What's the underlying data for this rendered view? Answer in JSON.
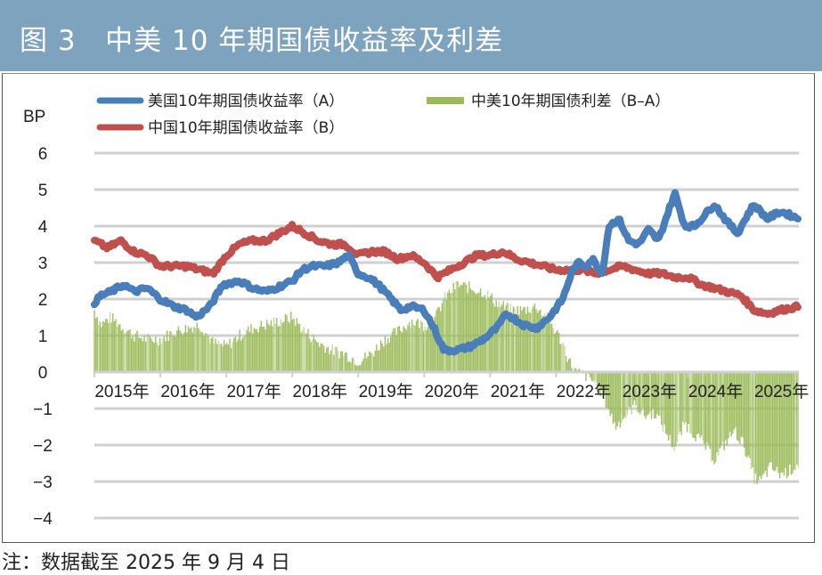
{
  "header": {
    "title": "图 3   中美 10 年期国债收益率及利差"
  },
  "footer": {
    "note": "注：数据截至 2025 年 9 月 4 日"
  },
  "chart_data": {
    "type": "line",
    "title": "中美 10 年期国债收益率及利差",
    "ylabel": "BP",
    "xlabel": "",
    "ylim": [
      -4,
      6
    ],
    "yticks": [
      "6",
      "5",
      "4",
      "3",
      "2",
      "1",
      "0",
      "−1",
      "−2",
      "−3",
      "−4"
    ],
    "ytick_values": [
      6,
      5,
      4,
      3,
      2,
      1,
      0,
      -1,
      -2,
      -3,
      -4
    ],
    "xlim": [
      2015.0,
      2025.68
    ],
    "xticks": [
      "2015年",
      "2016年",
      "2017年",
      "2018年",
      "2019年",
      "2020年",
      "2021年",
      "2022年",
      "2023年",
      "2024年",
      "2025年"
    ],
    "xtick_values": [
      2015,
      2016,
      2017,
      2018,
      2019,
      2020,
      2021,
      2022,
      2023,
      2024,
      2025
    ],
    "grid": true,
    "legend_position": "top",
    "colors": {
      "us": "#4a7ebb",
      "cn": "#c0504d",
      "spread": "#9bbb59",
      "grid": "#d0d0d0"
    },
    "series": [
      {
        "name": "美国10年期国债收益率（A）",
        "kind": "line",
        "x": [
          2015.0,
          2015.1,
          2015.25,
          2015.45,
          2015.6,
          2015.8,
          2016.0,
          2016.2,
          2016.4,
          2016.55,
          2016.75,
          2016.95,
          2017.2,
          2017.4,
          2017.6,
          2017.75,
          2018.0,
          2018.15,
          2018.3,
          2018.5,
          2018.7,
          2018.85,
          2019.0,
          2019.15,
          2019.3,
          2019.5,
          2019.65,
          2019.8,
          2020.0,
          2020.15,
          2020.3,
          2020.5,
          2020.7,
          2020.9,
          2021.1,
          2021.25,
          2021.5,
          2021.7,
          2021.9,
          2022.1,
          2022.25,
          2022.35,
          2022.45,
          2022.55,
          2022.7,
          2022.8,
          2022.95,
          2023.1,
          2023.25,
          2023.4,
          2023.55,
          2023.7,
          2023.8,
          2023.95,
          2024.1,
          2024.25,
          2024.4,
          2024.6,
          2024.75,
          2024.9,
          2025.0,
          2025.2,
          2025.4,
          2025.55,
          2025.68
        ],
        "values": [
          1.9,
          2.1,
          2.2,
          2.4,
          2.2,
          2.3,
          2.0,
          1.8,
          1.7,
          1.5,
          1.8,
          2.4,
          2.5,
          2.3,
          2.2,
          2.3,
          2.5,
          2.8,
          2.9,
          2.9,
          3.0,
          3.2,
          2.7,
          2.6,
          2.4,
          2.0,
          1.7,
          1.8,
          1.7,
          1.2,
          0.6,
          0.6,
          0.7,
          0.9,
          1.2,
          1.6,
          1.3,
          1.2,
          1.5,
          2.0,
          2.8,
          3.0,
          2.9,
          3.1,
          2.7,
          4.0,
          4.2,
          3.6,
          3.5,
          3.9,
          3.6,
          4.4,
          4.9,
          4.0,
          4.0,
          4.3,
          4.6,
          4.1,
          3.8,
          4.3,
          4.6,
          4.2,
          4.4,
          4.3,
          4.2
        ]
      },
      {
        "name": "中国10年期国债收益率（B）",
        "kind": "line",
        "x": [
          2015.0,
          2015.2,
          2015.4,
          2015.6,
          2015.8,
          2016.0,
          2016.2,
          2016.4,
          2016.6,
          2016.8,
          2017.0,
          2017.2,
          2017.4,
          2017.6,
          2017.8,
          2018.0,
          2018.2,
          2018.4,
          2018.6,
          2018.8,
          2019.0,
          2019.2,
          2019.4,
          2019.6,
          2019.8,
          2020.0,
          2020.2,
          2020.4,
          2020.6,
          2020.8,
          2021.0,
          2021.2,
          2021.4,
          2021.6,
          2021.8,
          2022.0,
          2022.2,
          2022.4,
          2022.6,
          2022.8,
          2023.0,
          2023.2,
          2023.4,
          2023.6,
          2023.8,
          2024.0,
          2024.2,
          2024.4,
          2024.6,
          2024.8,
          2025.0,
          2025.2,
          2025.4,
          2025.68
        ],
        "values": [
          3.6,
          3.4,
          3.6,
          3.3,
          3.2,
          2.9,
          2.9,
          2.9,
          2.8,
          2.7,
          3.2,
          3.5,
          3.6,
          3.6,
          3.8,
          4.0,
          3.8,
          3.6,
          3.5,
          3.5,
          3.2,
          3.3,
          3.3,
          3.1,
          3.2,
          3.0,
          2.6,
          2.8,
          3.0,
          3.2,
          3.2,
          3.3,
          3.1,
          3.0,
          2.9,
          2.8,
          2.8,
          2.8,
          2.7,
          2.8,
          2.9,
          2.8,
          2.7,
          2.7,
          2.6,
          2.6,
          2.4,
          2.3,
          2.2,
          2.1,
          1.7,
          1.6,
          1.7,
          1.8
        ]
      },
      {
        "name": "中美10年期国债利差（B–A）",
        "kind": "bar",
        "x": [
          2015.0,
          2015.1,
          2015.25,
          2015.45,
          2015.6,
          2015.8,
          2016.0,
          2016.2,
          2016.4,
          2016.6,
          2016.8,
          2017.0,
          2017.2,
          2017.4,
          2017.6,
          2017.8,
          2018.0,
          2018.2,
          2018.4,
          2018.6,
          2018.8,
          2019.0,
          2019.2,
          2019.4,
          2019.6,
          2019.8,
          2020.0,
          2020.15,
          2020.3,
          2020.5,
          2020.7,
          2020.9,
          2021.1,
          2021.3,
          2021.5,
          2021.7,
          2021.9,
          2022.1,
          2022.2,
          2022.3,
          2022.45,
          2022.6,
          2022.75,
          2022.9,
          2023.05,
          2023.2,
          2023.35,
          2023.5,
          2023.65,
          2023.8,
          2023.95,
          2024.1,
          2024.25,
          2024.4,
          2024.55,
          2024.7,
          2024.85,
          2025.0,
          2025.1,
          2025.25,
          2025.4,
          2025.55,
          2025.68
        ],
        "values": [
          1.7,
          1.3,
          1.5,
          1.2,
          1.0,
          0.9,
          0.9,
          1.1,
          1.2,
          1.3,
          0.8,
          0.7,
          1.0,
          1.2,
          1.3,
          1.4,
          1.5,
          1.1,
          0.8,
          0.6,
          0.5,
          0.3,
          0.5,
          0.9,
          1.1,
          1.4,
          1.3,
          1.4,
          2.0,
          2.4,
          2.3,
          2.2,
          1.9,
          1.7,
          1.7,
          1.8,
          1.4,
          0.8,
          0.3,
          0.0,
          -0.1,
          -0.3,
          -0.8,
          -1.5,
          -1.2,
          -0.9,
          -1.2,
          -1.1,
          -1.6,
          -2.1,
          -1.4,
          -1.7,
          -2.0,
          -2.4,
          -2.0,
          -1.6,
          -2.0,
          -2.9,
          -3.0,
          -2.6,
          -2.8,
          -2.7,
          -2.5
        ]
      }
    ]
  }
}
